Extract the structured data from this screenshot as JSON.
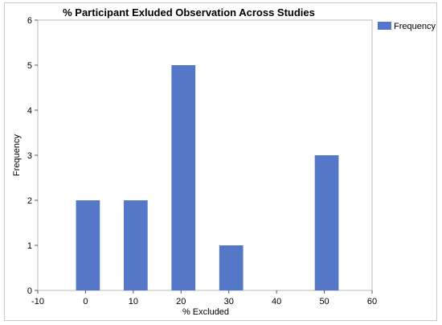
{
  "chart_data": {
    "type": "bar",
    "title": "% Participant Exluded Observation Across Studies",
    "xlabel": "% Excluded",
    "ylabel": "Frequency",
    "x": [
      0,
      10,
      20,
      30,
      50
    ],
    "values": [
      2,
      2,
      5,
      1,
      3
    ],
    "bar_width": 5,
    "xlim": [
      -10,
      60
    ],
    "ylim": [
      0,
      6
    ],
    "x_ticks": [
      -10,
      0,
      10,
      20,
      30,
      40,
      50,
      60
    ],
    "y_ticks": [
      0,
      1,
      2,
      3,
      4,
      5,
      6
    ],
    "series": [
      {
        "name": "Frequency",
        "color": "#5577c8"
      }
    ],
    "grid": false,
    "legend": "top-right"
  }
}
